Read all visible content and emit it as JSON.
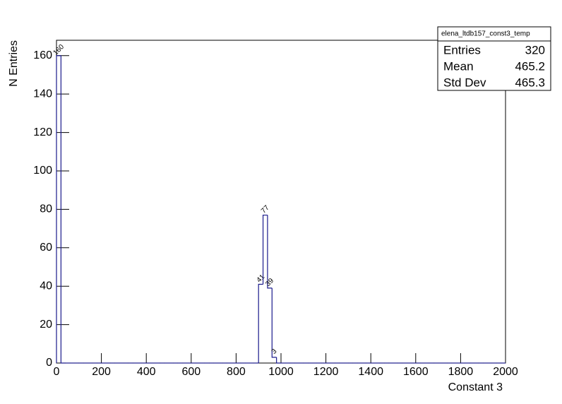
{
  "chart_data": {
    "type": "histogram",
    "xlabel": "Constant 3",
    "ylabel": "N Entries",
    "bins": [
      0,
      20,
      40,
      60,
      80,
      100,
      120,
      140,
      160,
      180,
      200,
      220,
      240,
      260,
      280,
      300,
      320,
      340,
      360,
      380,
      400,
      420,
      440,
      460,
      480,
      500,
      520,
      540,
      560,
      580,
      600,
      620,
      640,
      660,
      680,
      700,
      720,
      740,
      760,
      780,
      800,
      820,
      840,
      860,
      880,
      900,
      920,
      940,
      960,
      980,
      1000,
      1020,
      1040,
      1060,
      1080,
      1100,
      1120,
      1140,
      1160,
      1180,
      1200,
      1220,
      1240,
      1260,
      1280,
      1300,
      1320,
      1340,
      1360,
      1380,
      1400,
      1420,
      1440,
      1460,
      1480,
      1500,
      1520,
      1540,
      1560,
      1580,
      1600,
      1620,
      1640,
      1660,
      1680,
      1700,
      1720,
      1740,
      1760,
      1780,
      1800,
      1820,
      1840,
      1860,
      1880,
      1900,
      1920,
      1940,
      1960,
      1980,
      2000
    ],
    "counts": [
      160,
      0,
      0,
      0,
      0,
      0,
      0,
      0,
      0,
      0,
      0,
      0,
      0,
      0,
      0,
      0,
      0,
      0,
      0,
      0,
      0,
      0,
      0,
      0,
      0,
      0,
      0,
      0,
      0,
      0,
      0,
      0,
      0,
      0,
      0,
      0,
      0,
      0,
      0,
      0,
      0,
      0,
      0,
      0,
      0,
      41,
      77,
      39,
      3,
      0,
      0,
      0,
      0,
      0,
      0,
      0,
      0,
      0,
      0,
      0,
      0,
      0,
      0,
      0,
      0,
      0,
      0,
      0,
      0,
      0,
      0,
      0,
      0,
      0,
      0,
      0,
      0,
      0,
      0,
      0,
      0,
      0,
      0,
      0,
      0,
      0,
      0,
      0,
      0,
      0,
      0,
      0,
      0,
      0,
      0,
      0,
      0,
      0,
      0,
      0
    ],
    "color": "#1a1a8c",
    "xlim": [
      0,
      2000
    ],
    "xticks": [
      0,
      200,
      400,
      600,
      800,
      1000,
      1200,
      1400,
      1600,
      1800,
      2000
    ],
    "ylim": [
      0,
      168
    ],
    "yticks": [
      0,
      20,
      40,
      60,
      80,
      100,
      120,
      140,
      160
    ],
    "stats": {
      "title": "elena_ltdb157_const3_temp",
      "rows": [
        {
          "label": "Entries",
          "value": 320
        },
        {
          "label": "Mean",
          "value": 465.2
        },
        {
          "label": "Std Dev",
          "value": 465.3
        }
      ]
    }
  }
}
